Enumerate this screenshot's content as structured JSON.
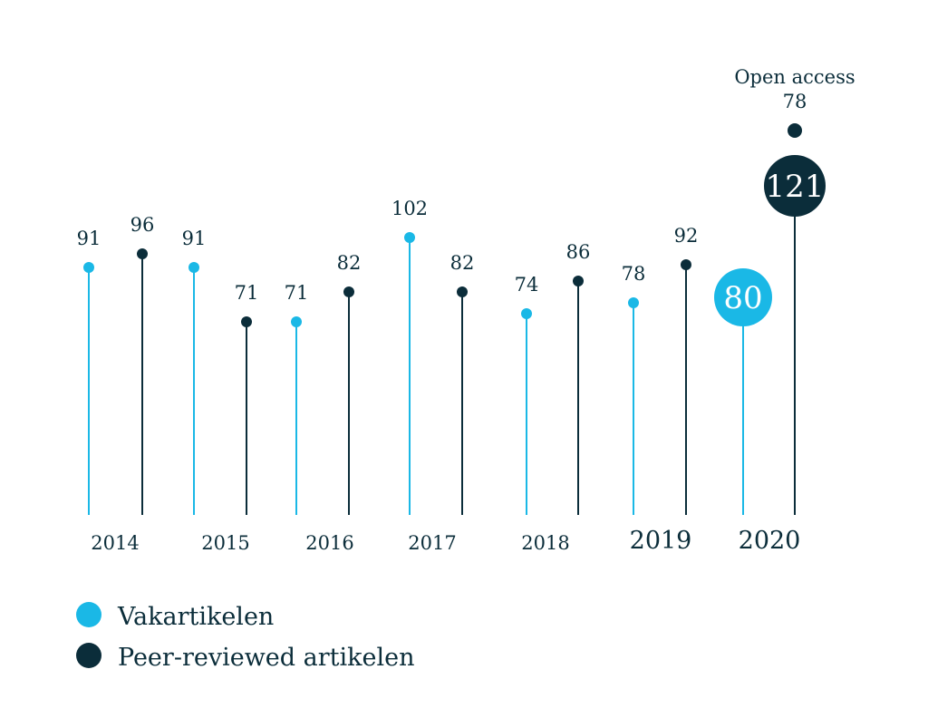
{
  "chart_data": {
    "type": "lollipop",
    "title": "",
    "xlabel": "",
    "ylabel": "",
    "ylim": [
      0,
      130
    ],
    "grid": false,
    "legend_position": "bottom-left",
    "colors": {
      "vak": "#1ab8e6",
      "peer": "#0b2d3a"
    },
    "years": [
      "2014",
      "2015",
      "2016",
      "2017",
      "2018",
      "2019",
      "2020"
    ],
    "series": [
      {
        "name": "Vakartikelen",
        "values": [
          91,
          91,
          71,
          102,
          74,
          78,
          80
        ]
      },
      {
        "name": "Peer-reviewed artikelen",
        "values": [
          96,
          71,
          82,
          82,
          86,
          92,
          121
        ]
      }
    ],
    "value_labels": {
      "vak": [
        "91",
        "91",
        "71",
        "102",
        "74",
        "78",
        "80"
      ],
      "peer": [
        "96",
        "71",
        "82",
        "82",
        "86",
        "92",
        "121"
      ]
    },
    "annotation": {
      "label": "Open access",
      "value": 78,
      "value_label": "78",
      "year": "2020"
    }
  }
}
